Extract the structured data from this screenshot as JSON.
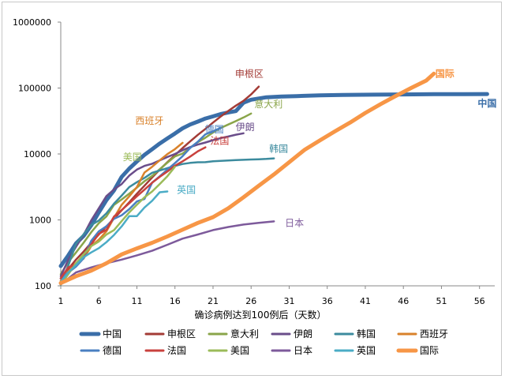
{
  "chart_data": {
    "type": "line",
    "title": "",
    "xlabel": "确诊病例达到100例后（天数）",
    "ylabel": "",
    "y_scale": "log",
    "xlim": [
      1,
      58
    ],
    "ylim": [
      100,
      1000000
    ],
    "x_ticks": [
      1,
      6,
      11,
      16,
      21,
      26,
      31,
      36,
      41,
      46,
      51,
      56
    ],
    "y_ticks": [
      100,
      1000,
      10000,
      100000,
      1000000
    ],
    "y_tick_labels": [
      "100",
      "1000",
      "10000",
      "100000",
      "1000000"
    ],
    "grid": false,
    "legend_position": "bottom",
    "series": [
      {
        "name": "中国",
        "color": "#3a6ea8",
        "end_label": "中国",
        "x": [
          1,
          2,
          3,
          4,
          5,
          6,
          7,
          8,
          9,
          10,
          11,
          12,
          13,
          14,
          15,
          16,
          17,
          18,
          19,
          20,
          21,
          22,
          23,
          24,
          25,
          26,
          28,
          30,
          32,
          35,
          38,
          42,
          46,
          50,
          54,
          57
        ],
        "y": [
          200,
          290,
          440,
          570,
          830,
          1300,
          2000,
          2800,
          4500,
          6000,
          7700,
          9700,
          11800,
          14400,
          17200,
          20400,
          24500,
          28000,
          31000,
          34500,
          37200,
          40200,
          42700,
          44700,
          59800,
          66500,
          72500,
          74200,
          75500,
          77500,
          78500,
          79300,
          80000,
          80600,
          80900,
          81000
        ]
      },
      {
        "name": "申根区",
        "color": "#a33b36",
        "end_label": "申根区",
        "x": [
          1,
          2,
          3,
          4,
          5,
          6,
          7,
          8,
          9,
          10,
          11,
          12,
          13,
          14,
          15,
          16,
          17,
          18,
          19,
          20,
          21,
          22,
          23,
          24,
          25,
          26,
          27
        ],
        "y": [
          130,
          180,
          250,
          330,
          450,
          600,
          800,
          1050,
          1400,
          1850,
          2500,
          3300,
          4400,
          5800,
          7500,
          9600,
          12300,
          15500,
          19500,
          24000,
          30000,
          37000,
          45000,
          54000,
          64000,
          80000,
          105000
        ]
      },
      {
        "name": "意大利",
        "color": "#8aa54a",
        "end_label": "意大利",
        "x": [
          1,
          2,
          3,
          4,
          5,
          6,
          7,
          8,
          9,
          10,
          11,
          12,
          13,
          14,
          15,
          16,
          17,
          18,
          19,
          20,
          21,
          22,
          23,
          24,
          25,
          26
        ],
        "y": [
          150,
          230,
          320,
          450,
          650,
          890,
          1130,
          1690,
          2040,
          2500,
          3090,
          3860,
          4640,
          5880,
          7380,
          9170,
          10150,
          12460,
          15110,
          17660,
          21160,
          24750,
          27980,
          31500,
          35710,
          41000
        ]
      },
      {
        "name": "伊朗",
        "color": "#6a4d8a",
        "end_label": "伊朗",
        "x": [
          1,
          2,
          3,
          4,
          5,
          6,
          7,
          8,
          9,
          10,
          11,
          12,
          13,
          14,
          15,
          16,
          17,
          18,
          19,
          20,
          21,
          22,
          23,
          24,
          25
        ],
        "y": [
          140,
          250,
          390,
          590,
          980,
          1500,
          2300,
          2900,
          3500,
          4700,
          5800,
          6600,
          7100,
          8000,
          9000,
          10000,
          11400,
          12700,
          13900,
          14900,
          16200,
          17400,
          18400,
          19600,
          20600
        ]
      },
      {
        "name": "韩国",
        "color": "#3c8b9e",
        "end_label": "韩国",
        "x": [
          1,
          2,
          3,
          4,
          5,
          6,
          7,
          8,
          9,
          10,
          11,
          12,
          13,
          14,
          15,
          16,
          17,
          18,
          19,
          20,
          21,
          22,
          23,
          24,
          25,
          26,
          27,
          28,
          29
        ],
        "y": [
          104,
          204,
          433,
          602,
          833,
          977,
          1261,
          1766,
          2337,
          3150,
          3736,
          4335,
          5186,
          5621,
          6088,
          6593,
          7041,
          7314,
          7478,
          7513,
          7755,
          7869,
          7979,
          8086,
          8162,
          8236,
          8320,
          8413,
          8565
        ]
      },
      {
        "name": "西班牙",
        "color": "#d9822b",
        "end_label": "西班牙",
        "x": [
          1,
          2,
          3,
          4,
          5,
          6,
          7,
          8,
          9,
          10,
          11,
          12,
          13,
          14,
          15,
          16,
          17
        ],
        "y": [
          120,
          165,
          222,
          259,
          400,
          500,
          673,
          1073,
          1695,
          2277,
          3146,
          5232,
          6391,
          7988,
          9942,
          11826,
          14769
        ]
      },
      {
        "name": "德国",
        "color": "#4a7fc1",
        "end_label": "德国",
        "x": [
          1,
          2,
          3,
          4,
          5,
          6,
          7,
          8,
          9,
          10,
          11,
          12,
          13,
          14,
          15,
          16,
          17,
          18,
          19,
          20,
          21,
          22
        ],
        "y": [
          130,
          159,
          196,
          262,
          482,
          670,
          799,
          1040,
          1176,
          1457,
          1908,
          2078,
          3675,
          4585,
          5795,
          7272,
          9257,
          12327,
          15320,
          19848,
          22213,
          24873
        ]
      },
      {
        "name": "法国",
        "color": "#c9413d",
        "end_label": "法国",
        "x": [
          1,
          2,
          3,
          4,
          5,
          6,
          7,
          8,
          9,
          10,
          11,
          12,
          13,
          14,
          15,
          16,
          17,
          18,
          19,
          20
        ],
        "y": [
          130,
          191,
          212,
          285,
          423,
          613,
          706,
          1126,
          1412,
          1784,
          2281,
          2876,
          3661,
          4499,
          5423,
          6633,
          7730,
          9134,
          10995,
          12612
        ]
      },
      {
        "name": "美国",
        "color": "#9bbb59",
        "end_label": "美国",
        "x": [
          1,
          2,
          3,
          4,
          5,
          6,
          7,
          8,
          9,
          10,
          11,
          12,
          13,
          14,
          15,
          16
        ],
        "y": [
          104,
          150,
          220,
          300,
          400,
          470,
          600,
          700,
          960,
          1300,
          1700,
          2200,
          2700,
          3500,
          4600,
          6400
        ]
      },
      {
        "name": "日本",
        "color": "#7d5a9b",
        "end_label": "日本",
        "x": [
          1,
          3,
          5,
          7,
          9,
          11,
          13,
          15,
          17,
          19,
          21,
          23,
          25,
          27,
          29
        ],
        "y": [
          105,
          160,
          190,
          220,
          250,
          290,
          340,
          420,
          520,
          600,
          700,
          780,
          850,
          900,
          950
        ]
      },
      {
        "name": "英国",
        "color": "#4bacc6",
        "end_label": "英国",
        "x": [
          1,
          2,
          3,
          4,
          5,
          6,
          7,
          8,
          9,
          10,
          11,
          12,
          13,
          14,
          15
        ],
        "y": [
          115,
          160,
          206,
          271,
          321,
          373,
          460,
          590,
          798,
          1140,
          1140,
          1543,
          1950,
          2626,
          2700
        ]
      },
      {
        "name": "国际",
        "color": "#f79646",
        "end_label": "国际",
        "x": [
          1,
          3,
          5,
          7,
          9,
          11,
          13,
          15,
          17,
          19,
          21,
          23,
          25,
          27,
          29,
          31,
          33,
          35,
          37,
          39,
          41,
          43,
          45,
          47,
          49,
          50
        ],
        "y": [
          110,
          140,
          170,
          220,
          300,
          370,
          450,
          560,
          710,
          900,
          1100,
          1500,
          2200,
          3300,
          4900,
          7500,
          11500,
          16000,
          22000,
          30000,
          42000,
          57000,
          76000,
          100000,
          130000,
          165000
        ]
      }
    ]
  }
}
